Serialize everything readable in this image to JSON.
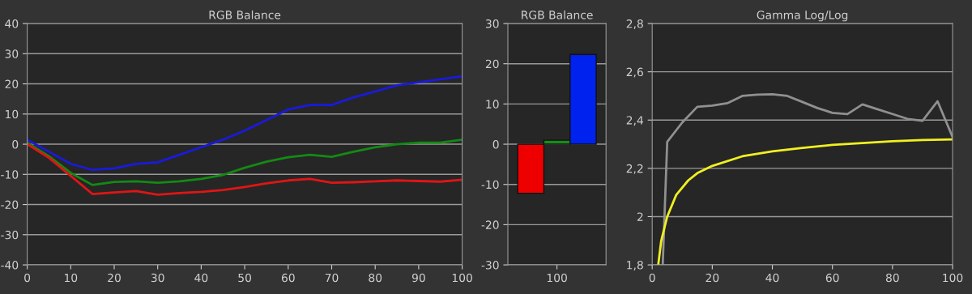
{
  "chart_data": [
    {
      "type": "line",
      "title": "RGB Balance",
      "x": [
        0,
        5,
        10,
        15,
        20,
        25,
        30,
        35,
        40,
        45,
        50,
        55,
        60,
        65,
        70,
        75,
        80,
        85,
        90,
        95,
        100
      ],
      "series": [
        {
          "color": "#1a1adc",
          "values": [
            1.5,
            -2.5,
            -6.5,
            -8.5,
            -8,
            -6.5,
            -6,
            -3.5,
            -1,
            1.5,
            4.5,
            8,
            11.5,
            13,
            13,
            15.5,
            17.5,
            19.5,
            20.5,
            21.5,
            22.5
          ]
        },
        {
          "color": "#138a13",
          "values": [
            0.5,
            -4,
            -9.5,
            -13.5,
            -12.5,
            -12.3,
            -12.8,
            -12.3,
            -11.5,
            -10.2,
            -7.8,
            -5.8,
            -4.3,
            -3.5,
            -4.2,
            -2.5,
            -1,
            0,
            0.5,
            0.5,
            1.5
          ]
        },
        {
          "color": "#e01515",
          "values": [
            0,
            -4.5,
            -10.5,
            -16.5,
            -16,
            -15.5,
            -16.7,
            -16.2,
            -15.8,
            -15.2,
            -14.2,
            -13,
            -12,
            -11.5,
            -12.8,
            -12.6,
            -12.3,
            -12,
            -12.2,
            -12.4,
            -11.8
          ]
        }
      ],
      "xlim": [
        0,
        100
      ],
      "xticks": [
        0,
        10,
        20,
        30,
        40,
        50,
        60,
        70,
        80,
        90,
        100
      ],
      "ylim": [
        -40,
        40
      ],
      "yticks": [
        -40,
        -30,
        -20,
        -10,
        0,
        10,
        20,
        30,
        40
      ],
      "grid": "y",
      "legend": false
    },
    {
      "type": "bar",
      "title": "RGB Balance",
      "categories": [
        "100"
      ],
      "series": [
        {
          "color": "#ee0000",
          "values": [
            -12.2
          ]
        },
        {
          "color": "#1a8c1a",
          "values": [
            1
          ]
        },
        {
          "color": "#0022ee",
          "values": [
            22.3
          ]
        }
      ],
      "ylim": [
        -30,
        30
      ],
      "yticks": [
        -30,
        -20,
        -10,
        0,
        10,
        20,
        30
      ],
      "grid": "y",
      "legend": false
    },
    {
      "type": "line",
      "title": "Gamma Log/Log",
      "series": [
        {
          "color": "#909090",
          "x": [
            3.5,
            5,
            10,
            15,
            20,
            25,
            30,
            35,
            40,
            45,
            50,
            55,
            60,
            65,
            70,
            75,
            80,
            85,
            90,
            95,
            100
          ],
          "values": [
            1.8,
            2.31,
            2.39,
            2.455,
            2.46,
            2.47,
            2.5,
            2.505,
            2.507,
            2.5,
            2.475,
            2.45,
            2.43,
            2.425,
            2.465,
            2.445,
            2.425,
            2.405,
            2.397,
            2.478,
            2.33
          ]
        },
        {
          "color": "#f0f020",
          "x": [
            2,
            3,
            5,
            8,
            12,
            15,
            20,
            30,
            40,
            50,
            60,
            70,
            80,
            90,
            100
          ],
          "values": [
            1.8,
            1.9,
            2.0,
            2.09,
            2.15,
            2.18,
            2.21,
            2.25,
            2.27,
            2.285,
            2.297,
            2.305,
            2.312,
            2.317,
            2.32
          ]
        }
      ],
      "xlim": [
        0,
        100
      ],
      "xticks": [
        0,
        20,
        40,
        60,
        80,
        100
      ],
      "ylim": [
        1.8,
        2.8
      ],
      "yticks": [
        {
          "value": 1.8,
          "label": "1,8"
        },
        {
          "value": 2,
          "label": "2"
        },
        {
          "value": 2.2,
          "label": "2,2"
        },
        {
          "value": 2.4,
          "label": "2,4"
        },
        {
          "value": 2.6,
          "label": "2,6"
        },
        {
          "value": 2.8,
          "label": "2,8"
        }
      ],
      "grid": "y",
      "legend": false
    }
  ]
}
